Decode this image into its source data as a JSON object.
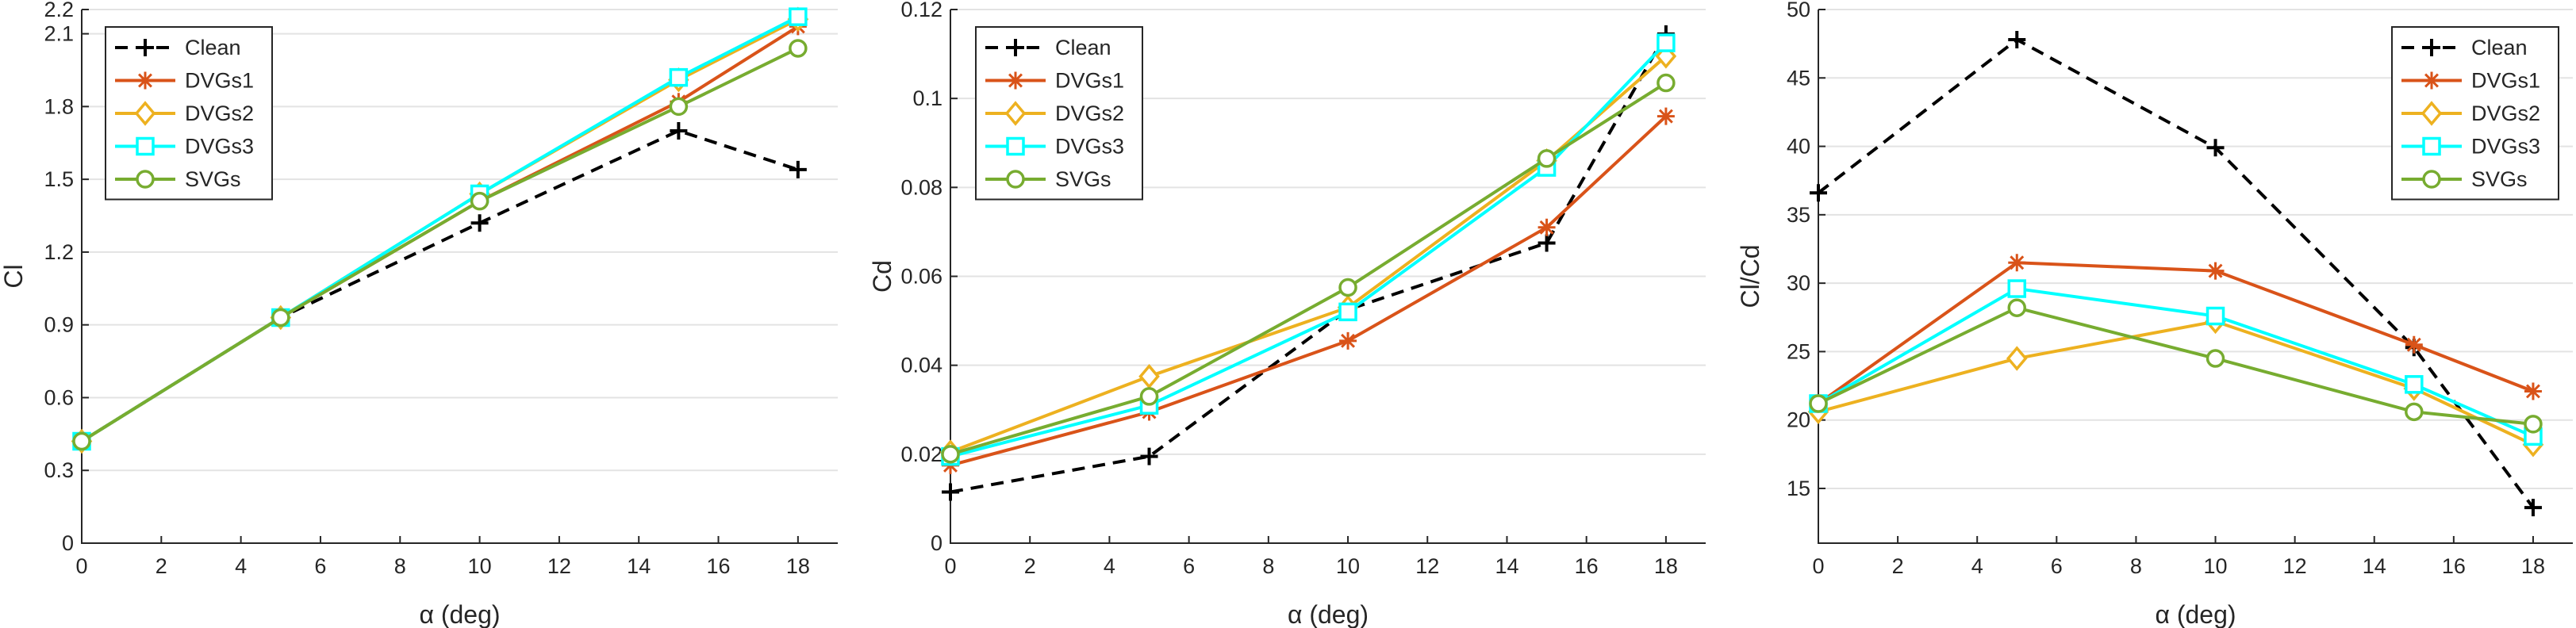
{
  "chart_data": [
    {
      "type": "line",
      "xlabel": "α (deg)",
      "ylabel": "Cl",
      "xlim": [
        0,
        19
      ],
      "ylim": [
        0,
        2.2
      ],
      "xticks": [
        0,
        2,
        4,
        6,
        8,
        10,
        12,
        14,
        16,
        18
      ],
      "yticks": [
        0,
        0.3,
        0.6,
        0.9,
        1.2,
        1.5,
        1.8,
        2.1,
        2.2
      ],
      "ytick_labels": [
        "0",
        "0.3",
        "0.6",
        "0.9",
        "1.2",
        "1.5",
        "1.8",
        "2.1",
        "2.2"
      ],
      "grid": "horizontal",
      "legend_position": "top-left",
      "x": [
        0,
        5,
        10,
        15,
        18
      ],
      "series": [
        {
          "name": "Clean",
          "color": "#000000",
          "dash": "dashed",
          "marker": "plus",
          "values": [
            0.42,
            0.93,
            1.32,
            1.7,
            1.54
          ]
        },
        {
          "name": "DVGs1",
          "color": "#D95319",
          "dash": "solid",
          "marker": "asterisk",
          "values": [
            0.42,
            0.93,
            1.41,
            1.82,
            2.13
          ]
        },
        {
          "name": "DVGs2",
          "color": "#EDB120",
          "dash": "solid",
          "marker": "diamond",
          "values": [
            0.42,
            0.93,
            1.44,
            1.91,
            2.16
          ]
        },
        {
          "name": "DVGs3",
          "color": "#00FFFF",
          "dash": "solid",
          "marker": "square",
          "values": [
            0.42,
            0.93,
            1.44,
            1.92,
            2.17
          ]
        },
        {
          "name": "SVGs",
          "color": "#77AC30",
          "dash": "solid",
          "marker": "circle",
          "values": [
            0.42,
            0.93,
            1.41,
            1.8,
            2.04
          ]
        }
      ]
    },
    {
      "type": "line",
      "xlabel": "α (deg)",
      "ylabel": "Cd",
      "xlim": [
        0,
        19
      ],
      "ylim": [
        0,
        0.12
      ],
      "xticks": [
        0,
        2,
        4,
        6,
        8,
        10,
        12,
        14,
        16,
        18
      ],
      "yticks": [
        0,
        0.02,
        0.04,
        0.06,
        0.08,
        0.1,
        0.12
      ],
      "ytick_labels": [
        "0",
        "0.02",
        "0.04",
        "0.06",
        "0.08",
        "0.1",
        "0.12"
      ],
      "grid": "horizontal",
      "legend_position": "top-left",
      "x": [
        0,
        5,
        10,
        15,
        18
      ],
      "series": [
        {
          "name": "Clean",
          "color": "#000000",
          "dash": "dashed",
          "marker": "plus",
          "values": [
            0.0115,
            0.0195,
            0.0525,
            0.0675,
            0.1145
          ]
        },
        {
          "name": "DVGs1",
          "color": "#D95319",
          "dash": "solid",
          "marker": "asterisk",
          "values": [
            0.0175,
            0.0295,
            0.0455,
            0.071,
            0.096
          ]
        },
        {
          "name": "DVGs2",
          "color": "#EDB120",
          "dash": "solid",
          "marker": "diamond",
          "values": [
            0.0205,
            0.0375,
            0.053,
            0.086,
            0.1095
          ]
        },
        {
          "name": "DVGs3",
          "color": "#00FFFF",
          "dash": "solid",
          "marker": "square",
          "values": [
            0.0195,
            0.031,
            0.052,
            0.0845,
            0.1125
          ]
        },
        {
          "name": "SVGs",
          "color": "#77AC30",
          "dash": "solid",
          "marker": "circle",
          "values": [
            0.02,
            0.033,
            0.0575,
            0.0865,
            0.1035
          ]
        }
      ]
    },
    {
      "type": "line",
      "xlabel": "α (deg)",
      "ylabel": "Cl/Cd",
      "xlim": [
        0,
        19
      ],
      "ylim": [
        11,
        50
      ],
      "xticks": [
        0,
        2,
        4,
        6,
        8,
        10,
        12,
        14,
        16,
        18
      ],
      "yticks": [
        15,
        20,
        25,
        30,
        35,
        40,
        45,
        50
      ],
      "ytick_labels": [
        "15",
        "20",
        "25",
        "30",
        "35",
        "40",
        "45",
        "50"
      ],
      "grid": "horizontal",
      "legend_position": "top-right",
      "x": [
        0,
        5,
        10,
        15,
        18
      ],
      "series": [
        {
          "name": "Clean",
          "color": "#000000",
          "dash": "dashed",
          "marker": "plus",
          "values": [
            36.6,
            47.8,
            39.9,
            25.3,
            13.6
          ]
        },
        {
          "name": "DVGs1",
          "color": "#D95319",
          "dash": "solid",
          "marker": "asterisk",
          "values": [
            21.2,
            31.5,
            30.9,
            25.5,
            22.1
          ]
        },
        {
          "name": "DVGs2",
          "color": "#EDB120",
          "dash": "solid",
          "marker": "diamond",
          "values": [
            20.6,
            24.5,
            27.2,
            22.3,
            18.2
          ]
        },
        {
          "name": "DVGs3",
          "color": "#00FFFF",
          "dash": "solid",
          "marker": "square",
          "values": [
            21.2,
            29.6,
            27.6,
            22.6,
            18.8
          ]
        },
        {
          "name": "SVGs",
          "color": "#77AC30",
          "dash": "solid",
          "marker": "circle",
          "values": [
            21.2,
            28.2,
            24.5,
            20.6,
            19.7
          ]
        }
      ]
    }
  ]
}
